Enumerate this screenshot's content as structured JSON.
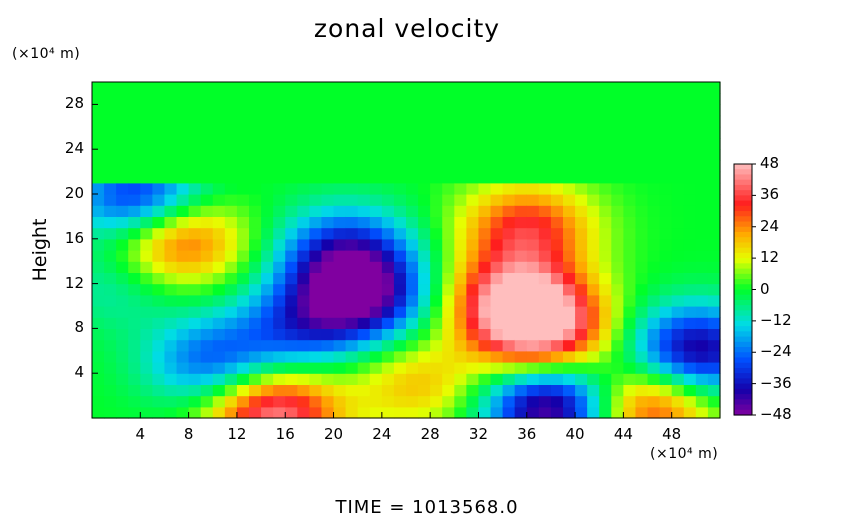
{
  "chart_data": {
    "type": "heatmap",
    "title": "zonal velocity",
    "y_axis": {
      "label": "Height",
      "unit": "(×10⁴ m)",
      "range": [
        0,
        30
      ],
      "ticks": [
        4,
        8,
        12,
        16,
        20,
        24,
        28
      ]
    },
    "x_axis": {
      "unit": "(×10⁴ m)",
      "range": [
        0,
        52
      ],
      "ticks": [
        4,
        8,
        12,
        16,
        20,
        24,
        28,
        32,
        36,
        40,
        44,
        48
      ]
    },
    "colorbar": {
      "range": [
        -48,
        48
      ],
      "ticks": [
        48,
        36,
        24,
        12,
        0,
        -12,
        -24,
        -36,
        -48
      ]
    },
    "footer": "TIME  =  1013568.0",
    "features": [
      {
        "x": 37,
        "y": 8,
        "value": 48
      },
      {
        "x": 35,
        "y": 11,
        "value": 36
      },
      {
        "x": 36,
        "y": 17,
        "value": 32
      },
      {
        "x": 27,
        "y": 3,
        "value": 18
      },
      {
        "x": 15,
        "y": 0.5,
        "value": 44
      },
      {
        "x": 7,
        "y": 16,
        "value": 34
      },
      {
        "x": 22,
        "y": 11,
        "value": -46
      },
      {
        "x": 21,
        "y": 15,
        "value": -30
      },
      {
        "x": 17,
        "y": 8,
        "value": -22
      },
      {
        "x": 10,
        "y": 5,
        "value": -26
      },
      {
        "x": 38,
        "y": 1,
        "value": -48
      },
      {
        "x": 50,
        "y": 6,
        "value": -42
      },
      {
        "x": 4,
        "y": 19.5,
        "value": -36
      },
      {
        "x": 46,
        "y": 1,
        "value": 34
      },
      {
        "x": 2,
        "y": 12,
        "value": -10
      }
    ],
    "upper_layer": {
      "y_from": 20.5,
      "y_to": 30,
      "value": 0
    }
  }
}
